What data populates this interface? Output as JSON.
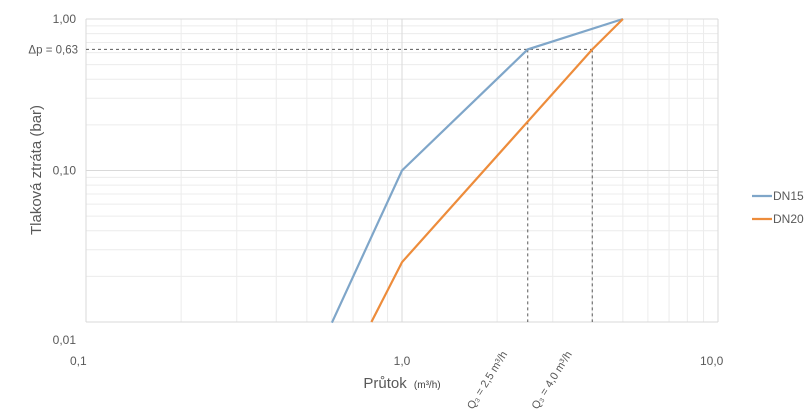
{
  "chart_data": {
    "type": "line",
    "title": "",
    "xlabel": "Průtok",
    "xlabel_unit": "(m³/h)",
    "ylabel": "Tlaková ztráta (bar)",
    "x_scale": "log",
    "y_scale": "log",
    "xlim": [
      0.1,
      10.0
    ],
    "ylim": [
      0.01,
      1.0
    ],
    "x_ticks": [
      0.1,
      1.0,
      10.0
    ],
    "x_tick_labels": [
      "0,1",
      "1,0",
      "10,0"
    ],
    "y_ticks": [
      0.01,
      0.1,
      1.0
    ],
    "y_tick_labels": [
      "0,01",
      "0,10",
      "1,00"
    ],
    "grid": true,
    "legend_position": "right",
    "series": [
      {
        "name": "DN15",
        "color": "#7fa6c9",
        "x": [
          0.6,
          1.0,
          2.5,
          5.0
        ],
        "y": [
          0.0099,
          0.1,
          0.63,
          1.0
        ]
      },
      {
        "name": "DN20",
        "color": "#ed8c3b",
        "x": [
          0.8,
          1.0,
          4.0,
          5.0
        ],
        "y": [
          0.01,
          0.0248,
          0.63,
          1.0
        ]
      }
    ],
    "annotations": {
      "dp_label": "Δp = 0,63",
      "dp_value": 0.63,
      "q_lines": [
        {
          "x": 2.5,
          "label": "Q₃ = 2,5 m³/h"
        },
        {
          "x": 4.0,
          "label": "Q₃ = 4,0 m³/h"
        }
      ]
    }
  },
  "colors": {
    "gridMajor": "#d9d9d9",
    "gridMinor": "#ececec",
    "dashed": "#595959"
  }
}
